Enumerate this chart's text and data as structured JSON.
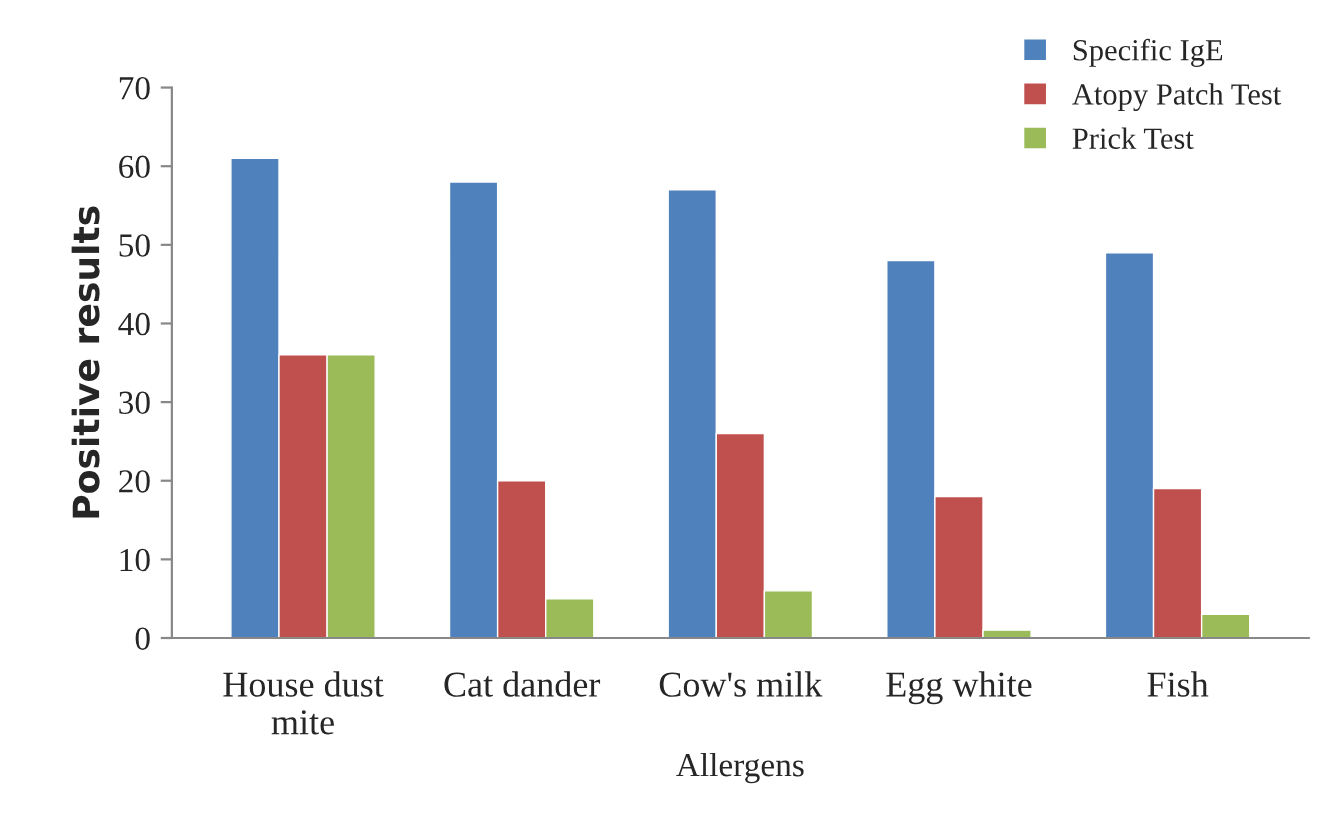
{
  "chart_data": {
    "type": "bar",
    "xlabel": "Allergens",
    "ylabel": "Positive results",
    "categories": [
      "House dust\nmite",
      "Cat dander",
      "Cow's milk",
      "Egg white",
      "Fish"
    ],
    "series": [
      {
        "name": "Specific IgE",
        "color": "#4f81bd",
        "values": [
          61,
          58,
          57,
          48,
          49
        ]
      },
      {
        "name": "Atopy Patch Test",
        "color": "#c0504d",
        "values": [
          36,
          20,
          26,
          18,
          19
        ]
      },
      {
        "name": "Prick Test",
        "color": "#9bbb59",
        "values": [
          36,
          5,
          6,
          1,
          3
        ]
      }
    ],
    "ylim": [
      0,
      70
    ],
    "yticks": [
      0,
      10,
      20,
      30,
      40,
      50,
      60,
      70
    ],
    "grid": false,
    "legend": "top right"
  }
}
